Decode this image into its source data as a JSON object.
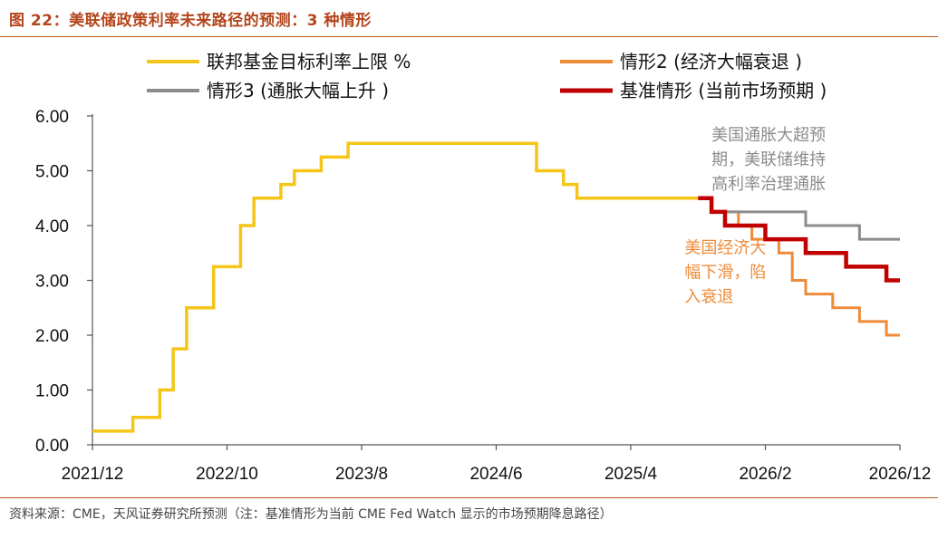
{
  "header": {
    "title": "图 22：美联储政策利率未来路径的预测：3 种情形"
  },
  "footer": {
    "source": "资料来源：CME，天风证券研究所预测（注：基准情形为当前 CME Fed Watch 显示的市场预期降息路径）"
  },
  "chart_data": {
    "type": "line",
    "step": true,
    "title": "",
    "xlabel": "",
    "ylabel": "",
    "ylim": [
      0,
      6
    ],
    "xlim": [
      "2021-12",
      "2026-12"
    ],
    "x_ticks": [
      "2021/12",
      "2022/10",
      "2023/8",
      "2024/6",
      "2025/4",
      "2026/2",
      "2026/12"
    ],
    "y_ticks": [
      "0.00",
      "1.00",
      "2.00",
      "3.00",
      "4.00",
      "5.00",
      "6.00"
    ],
    "legend_position": "top",
    "series": [
      {
        "name": "联邦基金目标利率上限 %",
        "color": "#f5c518",
        "points": [
          [
            "2021-12",
            0.25
          ],
          [
            "2022-03",
            0.5
          ],
          [
            "2022-05",
            1.0
          ],
          [
            "2022-06",
            1.75
          ],
          [
            "2022-07",
            2.5
          ],
          [
            "2022-09",
            3.25
          ],
          [
            "2022-11",
            4.0
          ],
          [
            "2022-12",
            4.5
          ],
          [
            "2023-02",
            4.75
          ],
          [
            "2023-03",
            5.0
          ],
          [
            "2023-05",
            5.25
          ],
          [
            "2023-07",
            5.5
          ],
          [
            "2024-09",
            5.0
          ],
          [
            "2024-11",
            4.75
          ],
          [
            "2024-12",
            4.5
          ],
          [
            "2025-09",
            4.5
          ]
        ]
      },
      {
        "name": "情形2 (经济大幅衰退 )",
        "color": "#ee8c3a",
        "points": [
          [
            "2025-09",
            4.5
          ],
          [
            "2025-10",
            4.25
          ],
          [
            "2025-12",
            4.0
          ],
          [
            "2026-01",
            3.75
          ],
          [
            "2026-03",
            3.5
          ],
          [
            "2026-04",
            3.0
          ],
          [
            "2026-05",
            2.75
          ],
          [
            "2026-07",
            2.5
          ],
          [
            "2026-09",
            2.25
          ],
          [
            "2026-11",
            2.0
          ],
          [
            "2026-12",
            2.0
          ]
        ]
      },
      {
        "name": "情形3 (通胀大幅上升 )",
        "color": "#8c8c8c",
        "points": [
          [
            "2025-09",
            4.5
          ],
          [
            "2025-10",
            4.25
          ],
          [
            "2026-05",
            4.0
          ],
          [
            "2026-09",
            3.75
          ],
          [
            "2026-12",
            3.75
          ]
        ]
      },
      {
        "name": "基准情形 (当前市场预期 )",
        "color": "#c00000",
        "points": [
          [
            "2025-09",
            4.5
          ],
          [
            "2025-10",
            4.25
          ],
          [
            "2025-11",
            4.0
          ],
          [
            "2026-02",
            3.75
          ],
          [
            "2026-05",
            3.5
          ],
          [
            "2026-08",
            3.25
          ],
          [
            "2026-11",
            3.0
          ],
          [
            "2026-12",
            3.0
          ]
        ]
      }
    ],
    "annotations": [
      {
        "lines": [
          "美国通胀大超预",
          "期，美联储维持",
          "高利率治理通胀"
        ],
        "color": "#8c8c8c",
        "anchor": [
          "2025-10",
          5.55
        ]
      },
      {
        "lines": [
          "美国经济大",
          "幅下滑，陷",
          "入衰退"
        ],
        "color": "#ee8c3a",
        "anchor": [
          "2025-08",
          3.5
        ]
      }
    ]
  }
}
